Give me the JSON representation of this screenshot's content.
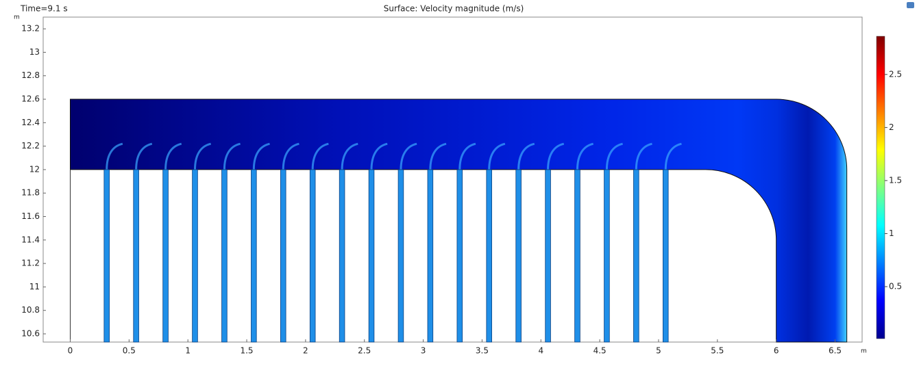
{
  "chart_data": {
    "type": "surface",
    "title": "Surface: Velocity magnitude (m/s)",
    "subtitle": "Time=9.1 s",
    "x_unit": "m",
    "y_unit": "m",
    "xlim": [
      -0.23,
      6.73
    ],
    "xticks": [
      0,
      0.5,
      1,
      1.5,
      2,
      2.5,
      3,
      3.5,
      4,
      4.5,
      5,
      5.5,
      6,
      6.5
    ],
    "ylim": [
      10.53,
      13.3
    ],
    "yticks": [
      10.6,
      10.8,
      11,
      11.2,
      11.4,
      11.6,
      11.8,
      12,
      12.2,
      12.4,
      12.6,
      12.8,
      13,
      13.2
    ],
    "clim": [
      0.01,
      2.86
    ],
    "cticks": [
      0.5,
      1,
      1.5,
      2,
      2.5
    ],
    "colormap": "jet"
  }
}
